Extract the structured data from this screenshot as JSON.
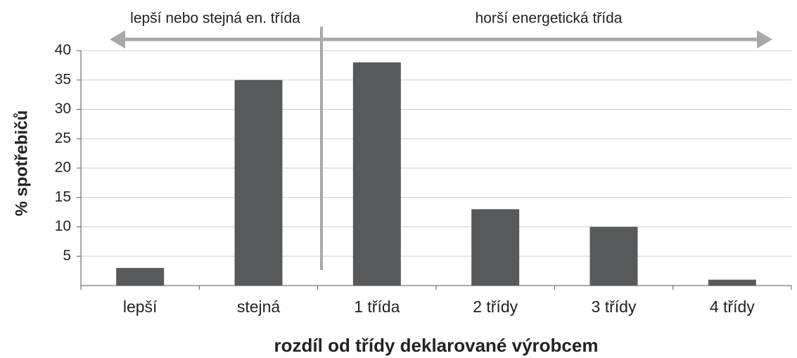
{
  "chart_data": {
    "type": "bar",
    "categories": [
      "lepší",
      "stejná",
      "1 třída",
      "2 třídy",
      "3 třídy",
      "4 třídy"
    ],
    "values": [
      3,
      35,
      38,
      13,
      10,
      1
    ],
    "color": "#58595b",
    "ylim": [
      0,
      40
    ],
    "yticks": [
      5,
      10,
      15,
      20,
      25,
      30,
      35,
      40
    ],
    "grid": true,
    "ylabel": "% spotřebičů",
    "xlabel": "rozdíl od třídy deklarované výrobcem",
    "annotations": [
      "lepší nebo stejná en. třída",
      "horší energetická třída"
    ]
  }
}
